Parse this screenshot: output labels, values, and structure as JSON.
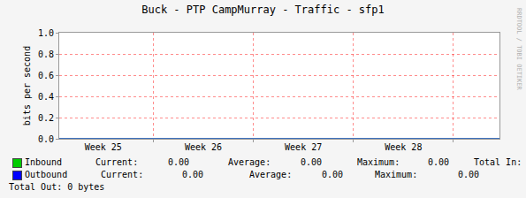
{
  "chart_data": {
    "type": "line",
    "title": "Buck - PTP CampMurray - Traffic - sfp1",
    "y_label": "bits per second",
    "watermark": "RRDTOOL / TOBI OETIKER",
    "x": [
      24.56,
      25,
      26,
      27,
      28,
      28.96
    ],
    "xlim": [
      24.56,
      28.96
    ],
    "xticks": [
      {
        "value": 25,
        "label": "Week 25"
      },
      {
        "value": 26,
        "label": "Week 26"
      },
      {
        "value": 27,
        "label": "Week 27"
      },
      {
        "value": 28,
        "label": "Week 28"
      }
    ],
    "ylim": [
      0,
      1
    ],
    "yticks": [
      {
        "value": 0,
        "label": "0.0"
      },
      0.2,
      0.4,
      0.6,
      0.8,
      {
        "value": 1,
        "label": "1.0"
      }
    ],
    "grid": true,
    "stat_labels": [
      "Current:",
      "Average:",
      "Maximum:"
    ],
    "series": [
      {
        "name": "Inbound",
        "color": "#00cc00",
        "values": [
          0,
          0,
          0,
          0,
          0,
          0
        ],
        "current": "0.00",
        "average": "0.00",
        "maximum": "0.00",
        "total_label": "Total In:"
      },
      {
        "name": "Outbound",
        "color": "#0000ff",
        "values": [
          0,
          0,
          0,
          0,
          0,
          0
        ],
        "current": "0.00",
        "average": "0.00",
        "maximum": "0.00",
        "total_label": "Total Out:",
        "total": "0 bytes"
      }
    ]
  }
}
